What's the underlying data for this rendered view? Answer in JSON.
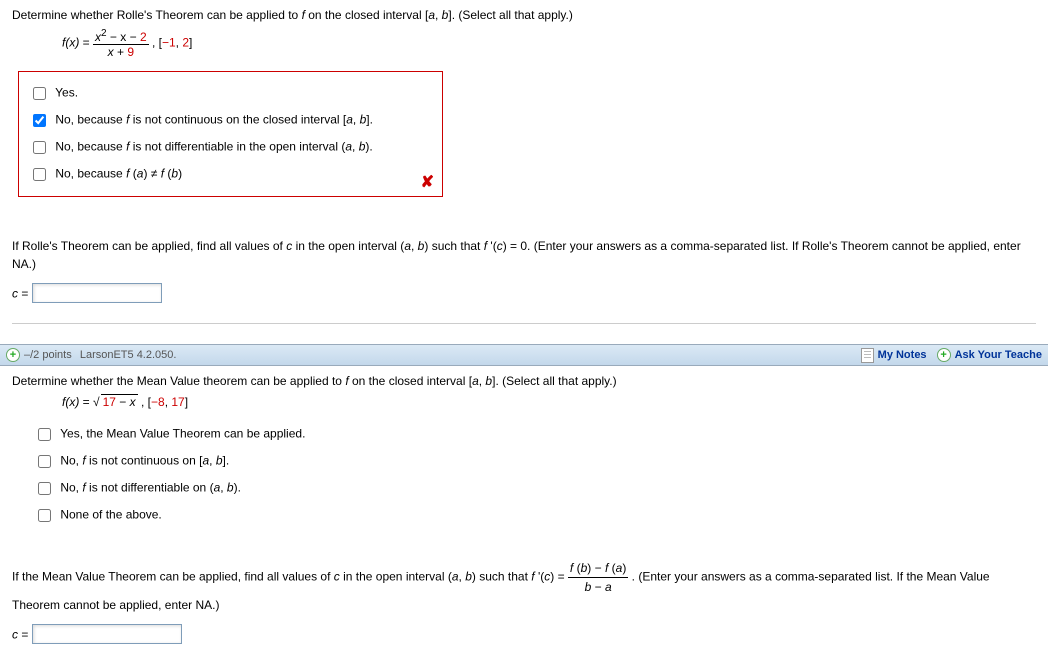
{
  "q1": {
    "prompt_pre": "Determine whether Rolle's Theorem can be applied to ",
    "prompt_f": "f",
    "prompt_mid": " on the closed interval [",
    "prompt_a": "a",
    "prompt_comma": ", ",
    "prompt_b": "b",
    "prompt_post": "]. (Select all that apply.)",
    "fx_label": "f(x)",
    "eq": " = ",
    "frac_top_a": "x",
    "frac_top_b": " − x − ",
    "frac_top_c": "2",
    "frac_bot_a": "x + ",
    "frac_bot_b": "9",
    "interval_open": ",    [",
    "interval_a": "−1",
    "interval_mid": ", ",
    "interval_b": "2",
    "interval_close": "]",
    "opts": {
      "o1": "Yes.",
      "o2a": "No, because ",
      "o2b": "f",
      "o2c": " is not continuous on the closed interval [",
      "o2d": "a",
      "o2e": ", ",
      "o2f": "b",
      "o2g": "].",
      "o3a": "No, because ",
      "o3b": "f",
      "o3c": " is not differentiable in the open interval (",
      "o3d": "a",
      "o3e": ", ",
      "o3f": "b",
      "o3g": ").",
      "o4a": "No, because ",
      "o4b": "f",
      "o4c": " (",
      "o4d": "a",
      "o4e": ") ≠ ",
      "o4f": "f",
      "o4g": " (",
      "o4h": "b",
      "o4i": ")"
    },
    "part2a": "If Rolle's Theorem can be applied, find all values of ",
    "part2b": "c",
    "part2c": " in the open interval (",
    "part2d": "a",
    "part2e": ", ",
    "part2f": "b",
    "part2g": ") such that ",
    "part2h": "f ",
    "part2i": "'(",
    "part2j": "c",
    "part2k": ") = 0. (Enter your answers as a comma-separated list. If Rolle's Theorem cannot be applied, enter NA.)",
    "c_label": "c",
    "c_eq": " = "
  },
  "header2": {
    "points": "–/2 points",
    "ref": "LarsonET5 4.2.050.",
    "mynotes": "My Notes",
    "ask": "Ask Your Teache"
  },
  "q2": {
    "prompt_pre": "Determine whether the Mean Value theorem can be applied to ",
    "prompt_f": "f",
    "prompt_mid": " on the closed interval [",
    "prompt_a": "a",
    "prompt_comma": ", ",
    "prompt_b": "b",
    "prompt_post": "]. (Select all that apply.)",
    "fx_label": "f(x)",
    "eq": " = ",
    "sqrt_inner_a": "17 − ",
    "sqrt_inner_b": "x",
    "interval_open": ",    [",
    "interval_a": "−8",
    "interval_mid": ", ",
    "interval_b": "17",
    "interval_close": "]",
    "opts": {
      "o1": "Yes, the Mean Value Theorem can be applied.",
      "o2a": "No, ",
      "o2b": "f",
      "o2c": " is not continuous on [",
      "o2d": "a",
      "o2e": ", ",
      "o2f": "b",
      "o2g": "].",
      "o3a": "No, ",
      "o3b": "f",
      "o3c": " is not differentiable on (",
      "o3d": "a",
      "o3e": ", ",
      "o3f": "b",
      "o3g": ").",
      "o4": "None of the above."
    },
    "part2a": "If the Mean Value Theorem can be applied, find all values of ",
    "part2b": "c",
    "part2c": " in the open interval (",
    "part2d": "a",
    "part2e": ", ",
    "part2f": "b",
    "part2g": ") such that  ",
    "part2h": "f ",
    "part2i": "'(",
    "part2j": "c",
    "part2k": ") = ",
    "frac_top_a": "f",
    "frac_top_b": " (",
    "frac_top_c": "b",
    "frac_top_d": ") − ",
    "frac_top_e": "f",
    "frac_top_f": " (",
    "frac_top_g": "a",
    "frac_top_h": ")",
    "frac_bot_a": "b",
    "frac_bot_b": " − ",
    "frac_bot_c": "a",
    "part2l": " . (Enter your answers as a comma-separated list. If the Mean Value Theorem cannot be applied, enter NA.)",
    "c_label": "c",
    "c_eq": " = "
  },
  "colors": {
    "error_border": "#cc0000",
    "numeric": "#cc0000",
    "link": "#003399",
    "header_bg": "#cee0ef"
  }
}
